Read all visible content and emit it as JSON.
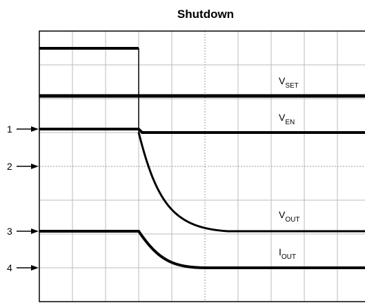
{
  "header": {
    "title": "Shutdown"
  },
  "traces": [
    {
      "main": "V",
      "sub": "SET"
    },
    {
      "main": "V",
      "sub": "EN"
    },
    {
      "main": "V",
      "sub": "OUT"
    },
    {
      "main": "I",
      "sub": "OUT"
    }
  ],
  "channels": [
    "1",
    "2",
    "3",
    "4"
  ]
}
